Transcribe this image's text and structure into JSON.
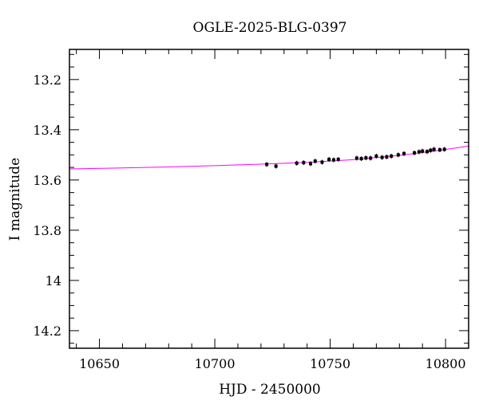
{
  "chart_data": {
    "type": "scatter",
    "title": "OGLE-2025-BLG-0397",
    "xlabel": "HJD - 2450000",
    "ylabel": "I magnitude",
    "xlim": [
      10637,
      10810
    ],
    "ylim": [
      14.27,
      13.08
    ],
    "y_inverted": true,
    "x_ticks": [
      10650,
      10700,
      10750,
      10800
    ],
    "y_ticks": [
      13.2,
      13.4,
      13.6,
      13.8,
      14,
      14.2
    ],
    "x_tick_labels": [
      "10650",
      "10700",
      "10750",
      "10800"
    ],
    "y_tick_labels": [
      "13.2",
      "13.4",
      "13.6",
      "13.8",
      "14",
      "14.2"
    ],
    "grid": false,
    "colors": {
      "points": "#000000",
      "model": "#ff00ff"
    },
    "points": [
      {
        "x": 10722.5,
        "y": 13.538
      },
      {
        "x": 10726.5,
        "y": 13.545
      },
      {
        "x": 10735.5,
        "y": 13.533
      },
      {
        "x": 10738.5,
        "y": 13.531
      },
      {
        "x": 10741.5,
        "y": 13.535
      },
      {
        "x": 10743.5,
        "y": 13.525
      },
      {
        "x": 10746.5,
        "y": 13.529
      },
      {
        "x": 10749.5,
        "y": 13.518
      },
      {
        "x": 10751.5,
        "y": 13.52
      },
      {
        "x": 10753.5,
        "y": 13.518
      },
      {
        "x": 10761.5,
        "y": 13.513
      },
      {
        "x": 10763.5,
        "y": 13.515
      },
      {
        "x": 10765.5,
        "y": 13.512
      },
      {
        "x": 10767.5,
        "y": 13.513
      },
      {
        "x": 10770.0,
        "y": 13.505
      },
      {
        "x": 10772.5,
        "y": 13.51
      },
      {
        "x": 10774.5,
        "y": 13.508
      },
      {
        "x": 10776.5,
        "y": 13.505
      },
      {
        "x": 10779.5,
        "y": 13.5
      },
      {
        "x": 10782.0,
        "y": 13.495
      },
      {
        "x": 10786.5,
        "y": 13.492
      },
      {
        "x": 10788.5,
        "y": 13.488
      },
      {
        "x": 10790.0,
        "y": 13.485
      },
      {
        "x": 10792.0,
        "y": 13.487
      },
      {
        "x": 10793.5,
        "y": 13.482
      },
      {
        "x": 10795.0,
        "y": 13.478
      },
      {
        "x": 10797.5,
        "y": 13.48
      },
      {
        "x": 10799.5,
        "y": 13.478
      }
    ],
    "model": [
      {
        "x": 10637,
        "y": 13.556
      },
      {
        "x": 10660,
        "y": 13.552
      },
      {
        "x": 10680,
        "y": 13.548
      },
      {
        "x": 10700,
        "y": 13.543
      },
      {
        "x": 10720,
        "y": 13.537
      },
      {
        "x": 10740,
        "y": 13.53
      },
      {
        "x": 10760,
        "y": 13.519
      },
      {
        "x": 10780,
        "y": 13.502
      },
      {
        "x": 10795,
        "y": 13.485
      },
      {
        "x": 10810,
        "y": 13.465
      }
    ]
  }
}
